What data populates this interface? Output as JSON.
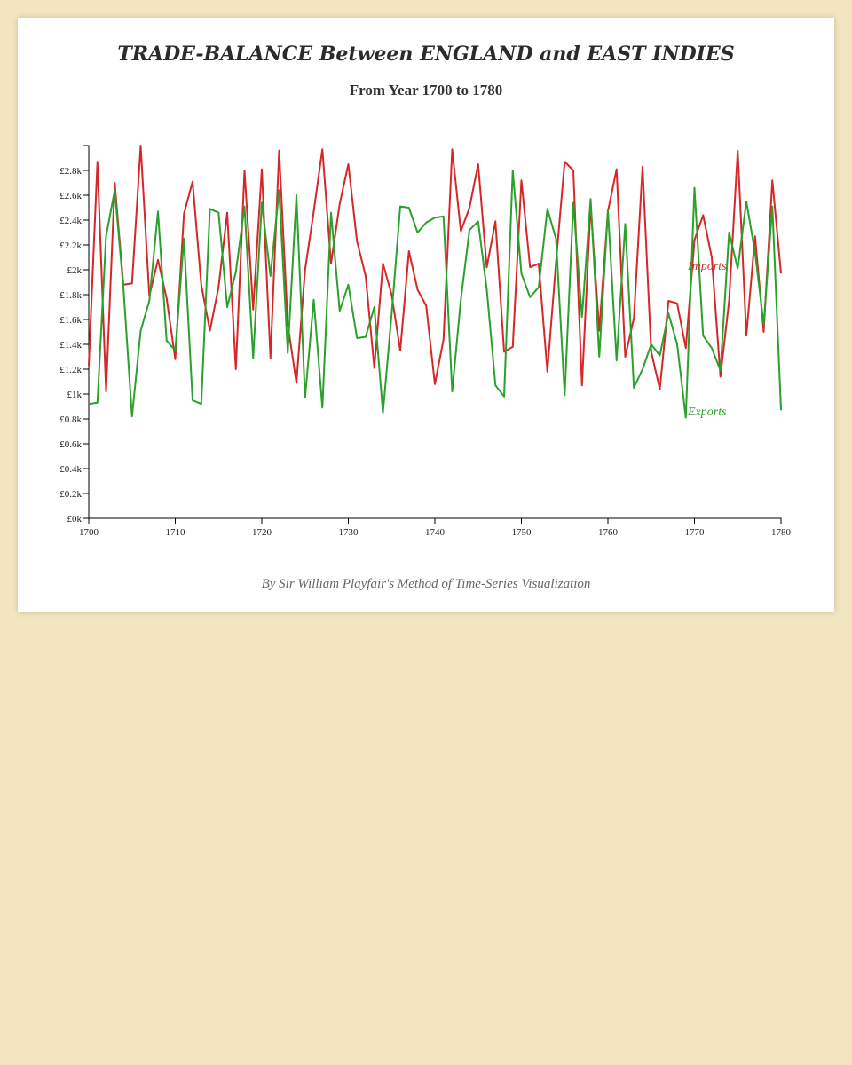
{
  "colors": {
    "imports": "#d62728",
    "exports": "#2ca02c",
    "axis": "#000000"
  },
  "chart_data": {
    "type": "line",
    "title": "TRADE-BALANCE Between ENGLAND and EAST INDIES",
    "subtitle": "From Year 1700 to 1780",
    "caption": "By Sir William Playfair's Method of Time-Series Visualization",
    "xlabel": "",
    "ylabel": "",
    "xlim": [
      1700,
      1780
    ],
    "ylim": [
      0,
      3000
    ],
    "x_ticks": [
      1700,
      1710,
      1720,
      1730,
      1740,
      1750,
      1760,
      1770,
      1780
    ],
    "x_tick_labels": [
      "1700",
      "1710",
      "1720",
      "1730",
      "1740",
      "1750",
      "1760",
      "1770",
      "1780"
    ],
    "y_ticks": [
      0,
      200,
      400,
      600,
      800,
      1000,
      1200,
      1400,
      1600,
      1800,
      2000,
      2200,
      2400,
      2600,
      2800
    ],
    "y_tick_labels": [
      "£0k",
      "£0.2k",
      "£0.4k",
      "£0.6k",
      "£0.8k",
      "£1k",
      "£1.2k",
      "£1.4k",
      "£1.6k",
      "£1.8k",
      "£2k",
      "£2.2k",
      "£2.4k",
      "£2.6k",
      "£2.8k"
    ],
    "x": [
      1700,
      1701,
      1702,
      1703,
      1704,
      1705,
      1706,
      1707,
      1708,
      1709,
      1710,
      1711,
      1712,
      1713,
      1714,
      1715,
      1716,
      1717,
      1718,
      1719,
      1720,
      1721,
      1722,
      1723,
      1724,
      1725,
      1726,
      1727,
      1728,
      1729,
      1730,
      1731,
      1732,
      1733,
      1734,
      1735,
      1736,
      1737,
      1738,
      1739,
      1740,
      1741,
      1742,
      1743,
      1744,
      1745,
      1746,
      1747,
      1748,
      1749,
      1750,
      1751,
      1752,
      1753,
      1754,
      1755,
      1756,
      1757,
      1758,
      1759,
      1760,
      1761,
      1762,
      1763,
      1764,
      1765,
      1766,
      1767,
      1768,
      1769,
      1770,
      1771,
      1772,
      1773,
      1774,
      1775,
      1776,
      1777,
      1778,
      1779,
      1780
    ],
    "series": [
      {
        "name": "Imports",
        "label": "Imports",
        "values": [
          1230,
          2870,
          1020,
          2700,
          1880,
          1890,
          3000,
          1790,
          2080,
          1770,
          1280,
          2450,
          2710,
          1880,
          1510,
          1860,
          2460,
          1200,
          2800,
          1680,
          2810,
          1290,
          2960,
          1560,
          1090,
          2000,
          2470,
          2970,
          2050,
          2530,
          2850,
          2230,
          1950,
          1210,
          2050,
          1800,
          1350,
          2150,
          1840,
          1710,
          1080,
          1440,
          2970,
          2310,
          2500,
          2850,
          2020,
          2390,
          1340,
          1380,
          2720,
          2020,
          2050,
          1180,
          2060,
          2870,
          2800,
          1070,
          2520,
          1510,
          2470,
          2810,
          1300,
          1610,
          2830,
          1340,
          1040,
          1750,
          1730,
          1370,
          2240,
          2440,
          2100,
          1140,
          1750,
          2960,
          1470,
          2270,
          1500,
          2720,
          1970
        ]
      },
      {
        "name": "Exports",
        "label": "Exports",
        "values": [
          920,
          930,
          2270,
          2640,
          1860,
          820,
          1510,
          1750,
          2470,
          1430,
          1350,
          2250,
          950,
          920,
          2490,
          2460,
          1700,
          1980,
          2510,
          1290,
          2540,
          1950,
          2640,
          1330,
          2600,
          970,
          1760,
          890,
          2460,
          1670,
          1880,
          1450,
          1460,
          1700,
          850,
          1640,
          2510,
          2500,
          2300,
          2380,
          2420,
          2430,
          1020,
          1760,
          2320,
          2390,
          1840,
          1070,
          980,
          2800,
          1970,
          1780,
          1860,
          2490,
          2250,
          990,
          2540,
          1620,
          2570,
          1300,
          2480,
          1270,
          2370,
          1050,
          1200,
          1400,
          1310,
          1650,
          1400,
          810,
          2660,
          1470,
          1370,
          1190,
          2300,
          2010,
          2550,
          2140,
          1560,
          2510,
          870
        ]
      }
    ]
  }
}
